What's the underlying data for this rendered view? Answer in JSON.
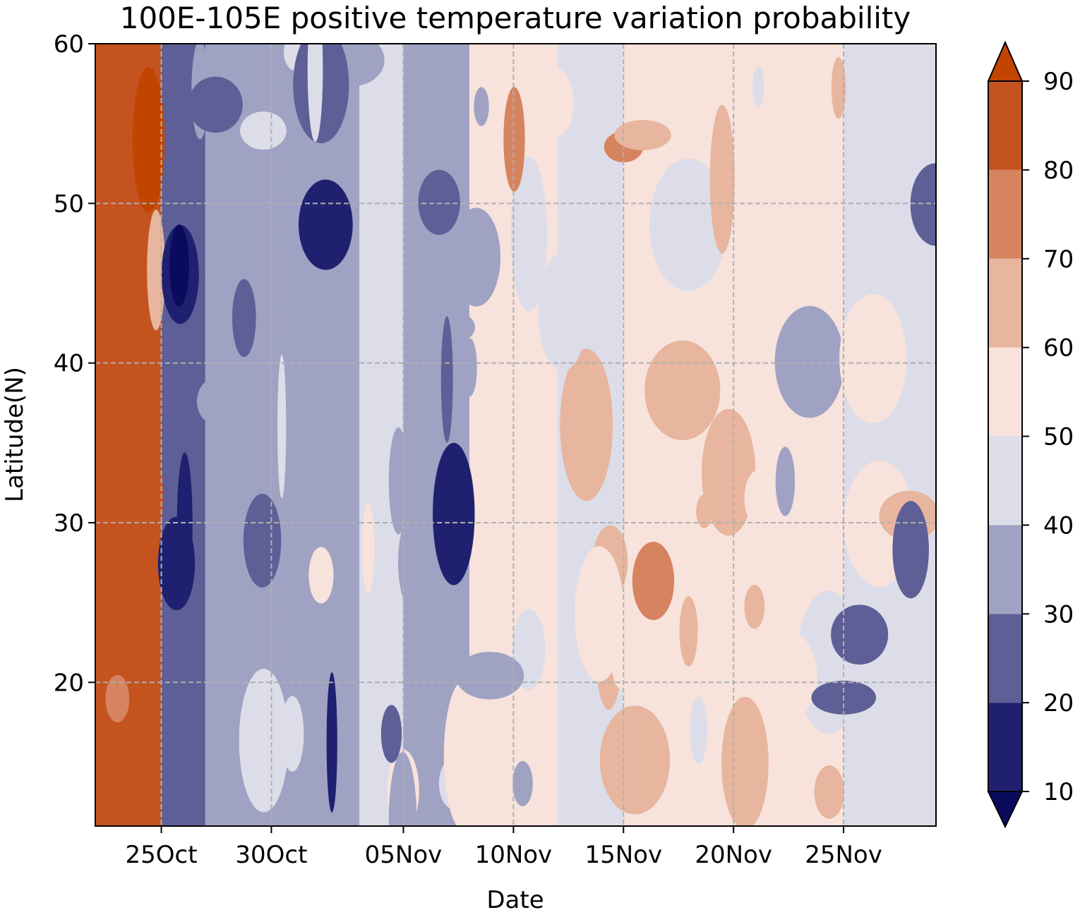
{
  "chart_data": {
    "type": "heatmap",
    "title": "100E-105E positive temperature variation probability",
    "xlabel": "Date",
    "ylabel": "Latitude(N)",
    "x_start": "22Oct",
    "x_end": "29Nov",
    "x_ticks": [
      {
        "label": "25Oct",
        "day": 3
      },
      {
        "label": "30Oct",
        "day": 8
      },
      {
        "label": "05Nov",
        "day": 14
      },
      {
        "label": "10Nov",
        "day": 19
      },
      {
        "label": "15Nov",
        "day": 24
      },
      {
        "label": "20Nov",
        "day": 29
      },
      {
        "label": "25Nov",
        "day": 34
      }
    ],
    "ylim": [
      11,
      60
    ],
    "y_ticks": [
      20,
      30,
      40,
      50,
      60
    ],
    "grid": true,
    "colorbar": {
      "levels": [
        10,
        20,
        30,
        40,
        50,
        60,
        70,
        80,
        90
      ],
      "tick_labels": [
        "10",
        "20",
        "30",
        "40",
        "50",
        "60",
        "70",
        "80",
        "90"
      ],
      "colors": [
        "#0b0b5e",
        "#1f2170",
        "#5f5f97",
        "#a0a2c3",
        "#dcdde8",
        "#f7e3dc",
        "#e8b59e",
        "#d6845f",
        "#c4531f",
        "#c14500"
      ],
      "extend": "both"
    },
    "value_bands": [
      {
        "day_from": 0,
        "day_to": 3,
        "value": 80
      },
      {
        "day_from": 3,
        "day_to": 5,
        "value": 22
      },
      {
        "day_from": 5,
        "day_to": 8,
        "value": 30
      },
      {
        "day_from": 8,
        "day_to": 12,
        "value": 33
      },
      {
        "day_from": 12,
        "day_to": 14,
        "value": 40
      },
      {
        "day_from": 14,
        "day_to": 17,
        "value": 38
      },
      {
        "day_from": 17,
        "day_to": 21,
        "value": 53
      },
      {
        "day_from": 21,
        "day_to": 24,
        "value": 47
      },
      {
        "day_from": 24,
        "day_to": 29,
        "value": 56
      },
      {
        "day_from": 29,
        "day_to": 34,
        "value": 50
      },
      {
        "day_from": 34,
        "day_to": 38.2,
        "value": 46
      }
    ]
  }
}
